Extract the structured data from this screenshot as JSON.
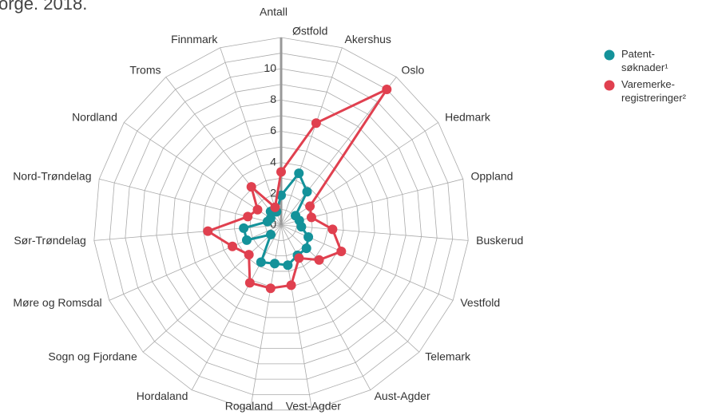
{
  "chart_data": {
    "type": "radar",
    "title": "orge. 2018.",
    "y_label": "Antall",
    "categories": [
      "Østfold",
      "Akershus",
      "Oslo",
      "Hedmark",
      "Oppland",
      "Buskerud",
      "Vestfold",
      "Telemark",
      "Aust-Agder",
      "Vest-Agder",
      "Rogaland",
      "Hordaland",
      "Sogn og Fjordane",
      "Møre og Romsdal",
      "Sør-Trøndelag",
      "Nord-Trøndelag",
      "Nordland",
      "Troms",
      "Finnmark"
    ],
    "series": [
      {
        "name": "Patent-søknader¹",
        "color": "#14929a",
        "values": [
          1.9,
          3.5,
          2.7,
          1.1,
          1.2,
          1.3,
          1.9,
          2.2,
          2.2,
          2.6,
          2.5,
          2.7,
          0.9,
          2.4,
          2.4,
          0.9,
          0.8,
          1.1,
          0.9
        ]
      },
      {
        "name": "Varemerke-registreringer²",
        "color": "#e0404f",
        "values": [
          3.4,
          6.9,
          11.0,
          2.2,
          2.0,
          3.3,
          4.2,
          3.3,
          2.4,
          3.9,
          4.1,
          4.2,
          2.8,
          3.4,
          4.7,
          2.2,
          1.8,
          3.1,
          1.2
        ]
      }
    ],
    "ylim": [
      0,
      12
    ],
    "yticks": [
      0,
      2,
      4,
      6,
      8,
      10
    ],
    "yticks_minor": [
      1,
      3,
      5,
      7,
      9,
      11
    ],
    "grid": true,
    "legend": "upper right"
  }
}
